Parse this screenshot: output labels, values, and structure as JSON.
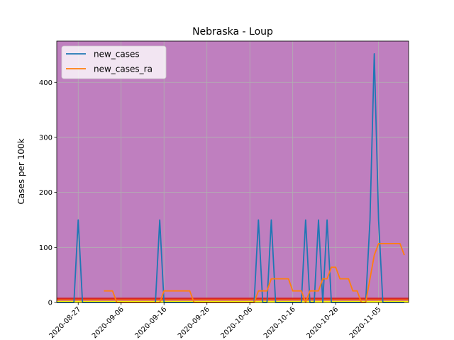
{
  "chart_data": {
    "type": "line",
    "title": "Nebraska - Loup",
    "xlabel": "",
    "ylabel": "Cases per 100k",
    "x_start": "2020-08-22",
    "x_end": "2020-11-12",
    "xticks": [
      "2020-08-27",
      "2020-09-06",
      "2020-09-16",
      "2020-09-26",
      "2020-10-06",
      "2020-10-16",
      "2020-10-26",
      "2020-11-05"
    ],
    "ylim": [
      0,
      475
    ],
    "yticks": [
      0,
      100,
      200,
      300,
      400
    ],
    "grid": true,
    "legend_position": "top-left",
    "background_color": "#bf7fbf",
    "threshold_lines": [
      {
        "value": 1,
        "color": "#ffff00"
      },
      {
        "value": 5,
        "color": "#ff7f0e"
      },
      {
        "value": 7,
        "color": "#d62728"
      }
    ],
    "series": [
      {
        "name": "new_cases",
        "color": "#1f77b4",
        "points": [
          [
            "2020-08-22",
            0
          ],
          [
            "2020-08-26",
            0
          ],
          [
            "2020-08-27",
            150
          ],
          [
            "2020-08-28",
            0
          ],
          [
            "2020-09-14",
            0
          ],
          [
            "2020-09-15",
            150
          ],
          [
            "2020-09-16",
            0
          ],
          [
            "2020-10-07",
            0
          ],
          [
            "2020-10-08",
            150
          ],
          [
            "2020-10-09",
            0
          ],
          [
            "2020-10-10",
            0
          ],
          [
            "2020-10-11",
            150
          ],
          [
            "2020-10-12",
            0
          ],
          [
            "2020-10-18",
            0
          ],
          [
            "2020-10-19",
            150
          ],
          [
            "2020-10-20",
            0
          ],
          [
            "2020-10-21",
            0
          ],
          [
            "2020-10-22",
            150
          ],
          [
            "2020-10-23",
            0
          ],
          [
            "2020-10-23",
            0
          ],
          [
            "2020-10-24",
            150
          ],
          [
            "2020-10-25",
            0
          ],
          [
            "2020-11-02",
            0
          ],
          [
            "2020-11-03",
            150
          ],
          [
            "2020-11-04",
            452
          ],
          [
            "2020-11-05",
            150
          ],
          [
            "2020-11-06",
            0
          ],
          [
            "2020-11-11",
            0
          ]
        ]
      },
      {
        "name": "new_cases_ra",
        "color": "#ff7f0e",
        "points": [
          [
            "2020-09-02",
            21
          ],
          [
            "2020-09-04",
            21
          ],
          [
            "2020-09-05",
            0
          ],
          [
            "2020-09-14",
            0
          ],
          [
            "2020-09-15",
            0
          ],
          [
            "2020-09-16",
            21
          ],
          [
            "2020-09-22",
            21
          ],
          [
            "2020-09-23",
            0
          ],
          [
            "2020-10-07",
            0
          ],
          [
            "2020-10-08",
            21
          ],
          [
            "2020-10-10",
            21
          ],
          [
            "2020-10-11",
            43
          ],
          [
            "2020-10-15",
            43
          ],
          [
            "2020-10-16",
            21
          ],
          [
            "2020-10-18",
            21
          ],
          [
            "2020-10-19",
            0
          ],
          [
            "2020-10-19",
            0
          ],
          [
            "2020-10-20",
            21
          ],
          [
            "2020-10-22",
            21
          ],
          [
            "2020-10-23",
            43
          ],
          [
            "2020-10-24",
            43
          ],
          [
            "2020-10-25",
            64
          ],
          [
            "2020-10-26",
            64
          ],
          [
            "2020-10-27",
            43
          ],
          [
            "2020-10-29",
            43
          ],
          [
            "2020-10-30",
            21
          ],
          [
            "2020-10-31",
            21
          ],
          [
            "2020-11-01",
            0
          ],
          [
            "2020-11-02",
            0
          ],
          [
            "2020-11-04",
            86
          ],
          [
            "2020-11-05",
            107
          ],
          [
            "2020-11-10",
            107
          ],
          [
            "2020-11-11",
            86
          ]
        ]
      }
    ]
  }
}
